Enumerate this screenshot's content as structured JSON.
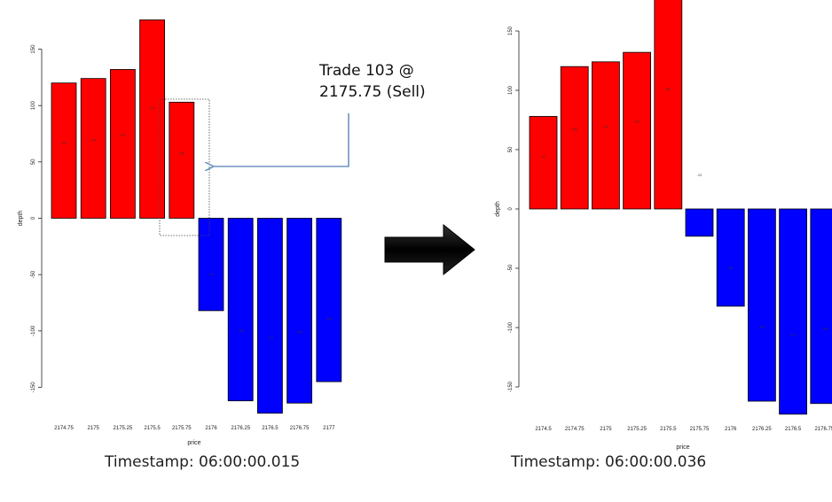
{
  "charts": {
    "chart_data": [
      {
        "type": "bar",
        "title": "",
        "xlabel": "price",
        "ylabel": "depth",
        "ylim": [
          -175,
          175
        ],
        "yticks": [
          -150,
          -100,
          -50,
          0,
          50,
          100,
          150
        ],
        "ytick_labels": [
          "-150",
          "-100",
          "-50",
          "0",
          "50",
          "100",
          "150"
        ],
        "categories": [
          "2174.75",
          "2175",
          "2175.25",
          "2175.5",
          "2175.75",
          "2176",
          "2176.25",
          "2176.5",
          "2176.75",
          "2177"
        ],
        "values": [
          120,
          124,
          132,
          176,
          103,
          -82,
          -162,
          -173,
          -164,
          -145
        ],
        "colors": [
          "#ff0000",
          "#ff0000",
          "#ff0000",
          "#ff0000",
          "#ff0000",
          "#0000ff",
          "#0000ff",
          "#0000ff",
          "#0000ff",
          "#0000ff"
        ],
        "bar_labels": [
          "120",
          "124",
          "132",
          "176",
          "103",
          "-82",
          "-162",
          "-173",
          "-164",
          "-145"
        ],
        "legend": "none",
        "grid": false
      },
      {
        "type": "bar",
        "title": "",
        "xlabel": "price",
        "ylabel": "depth",
        "ylim": [
          -175,
          175
        ],
        "yticks": [
          -150,
          -100,
          -50,
          0,
          50,
          100,
          150
        ],
        "ytick_labels": [
          "-150",
          "-100",
          "-50",
          "0",
          "50",
          "100",
          "150"
        ],
        "categories": [
          "2174.5",
          "2174.75",
          "2175",
          "2175.25",
          "2175.5",
          "2175.75",
          "2176",
          "2176.25",
          "2176.5",
          "2176.75"
        ],
        "values": [
          78,
          120,
          124,
          132,
          182,
          -23,
          -82,
          -162,
          -173,
          -164
        ],
        "colors": [
          "#ff0000",
          "#ff0000",
          "#ff0000",
          "#ff0000",
          "#ff0000",
          "#0000ff",
          "#0000ff",
          "#0000ff",
          "#0000ff",
          "#0000ff"
        ],
        "bar_labels": [
          "78",
          "120",
          "124",
          "132",
          "182",
          "-23",
          "-82",
          "-162",
          "-173",
          "-164"
        ],
        "legend": "none",
        "grid": false
      }
    ]
  },
  "annotation": {
    "line1": "Trade 103 @",
    "line2": "2175.75 (Sell)",
    "arrow_color": "#6f93c4"
  },
  "captions": {
    "left": "Timestamp: 06:00:00.015",
    "right": "Timestamp: 06:00:00.036"
  },
  "transition_arrow_color": "#000000"
}
